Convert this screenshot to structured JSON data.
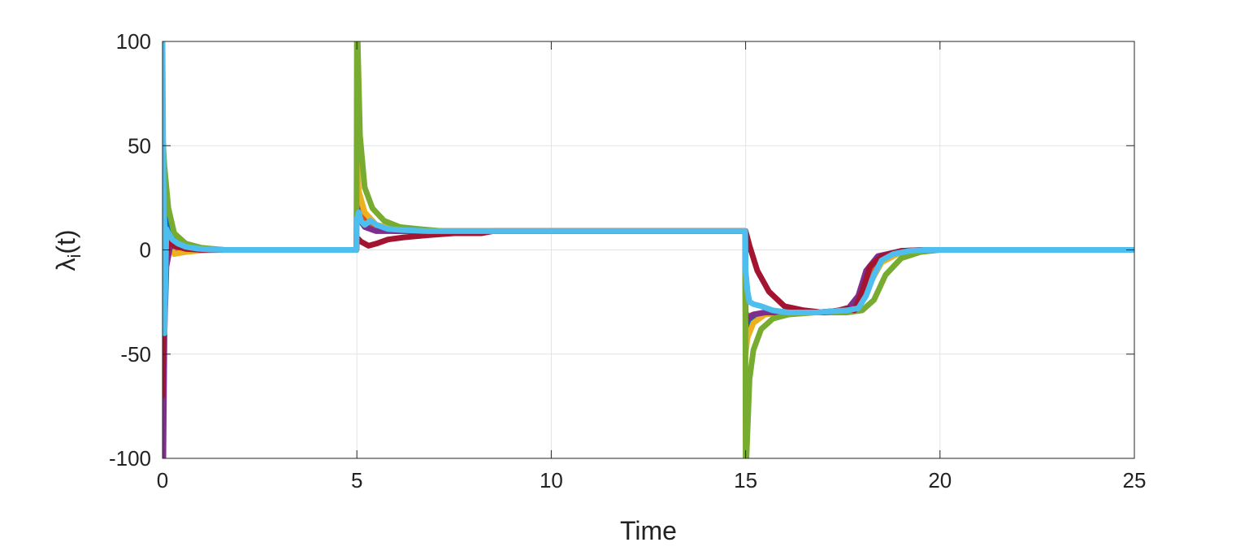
{
  "chart_data": {
    "type": "line",
    "xlabel": "Time",
    "ylabel": "λi(t)",
    "ylabel_base": "λ",
    "ylabel_sub": "i",
    "ylabel_rest": "(t)",
    "xlim": [
      0,
      25
    ],
    "ylim": [
      -100,
      100
    ],
    "xticks": [
      0,
      5,
      10,
      15,
      20,
      25
    ],
    "yticks": [
      -100,
      -50,
      0,
      50,
      100
    ],
    "xtick_labels": [
      "0",
      "5",
      "10",
      "15",
      "20",
      "25"
    ],
    "ytick_labels": [
      "-100",
      "-50",
      "0",
      "50",
      "100"
    ],
    "grid": true,
    "box": true,
    "series": [
      {
        "color": "#0072BD",
        "x": [
          0,
          0.05,
          0.15,
          0.3,
          0.6,
          1.0,
          1.6,
          4.99,
          5.0,
          5.05,
          5.2,
          5.5,
          6.0,
          6.6,
          7.2,
          8.0,
          14.99,
          15.0,
          15.05,
          15.2,
          15.5,
          16.0,
          16.8,
          17.6,
          17.9,
          18.2,
          18.5,
          19.0,
          19.6,
          25
        ],
        "y": [
          60,
          25,
          12,
          5,
          1.5,
          0.4,
          0,
          0,
          30,
          18,
          12,
          10,
          9,
          9,
          9,
          9,
          9,
          -40,
          -36,
          -32,
          -30,
          -30,
          -30,
          -29,
          -26,
          -15,
          -5,
          -1,
          0,
          0
        ]
      },
      {
        "color": "#D95319",
        "x": [
          0,
          0.05,
          0.15,
          0.3,
          0.6,
          1.0,
          1.6,
          4.99,
          5.0,
          5.05,
          5.2,
          5.5,
          6.0,
          6.6,
          7.2,
          8.0,
          14.99,
          15.0,
          15.05,
          15.2,
          15.5,
          16.0,
          16.8,
          17.6,
          17.9,
          18.2,
          18.5,
          19.0,
          19.6,
          25
        ],
        "y": [
          -20,
          -5,
          2,
          1,
          0.3,
          0,
          0,
          0,
          35,
          22,
          15,
          11,
          9,
          9,
          9,
          9,
          9,
          -30,
          -32,
          -31,
          -30,
          -30,
          -30,
          -29,
          -25,
          -12,
          -4,
          -1,
          0,
          0
        ]
      },
      {
        "color": "#EDB120",
        "x": [
          0,
          0.05,
          0.15,
          0.3,
          0.6,
          1.0,
          1.6,
          4.99,
          5.0,
          5.05,
          5.2,
          5.5,
          6.0,
          6.6,
          7.2,
          8.0,
          14.99,
          15.0,
          15.05,
          15.2,
          15.5,
          16.0,
          16.8,
          17.6,
          17.9,
          18.2,
          18.5,
          19.0,
          19.6,
          25
        ],
        "y": [
          40,
          10,
          3,
          -2,
          -1,
          -0.3,
          0,
          0,
          45,
          28,
          18,
          12,
          10,
          9,
          9,
          9,
          9,
          -50,
          -42,
          -35,
          -31,
          -30,
          -30,
          -29,
          -26,
          -16,
          -6,
          -1,
          0,
          0
        ]
      },
      {
        "color": "#7E2F8E",
        "x": [
          0,
          0.02,
          0.05,
          0.1,
          0.2,
          0.4,
          0.8,
          1.4,
          4.99,
          5.0,
          5.05,
          5.2,
          5.5,
          6.0,
          6.6,
          7.2,
          8.0,
          14.99,
          15.0,
          15.05,
          15.2,
          15.5,
          16.0,
          16.8,
          17.6,
          17.9,
          18.1,
          18.4,
          19.0,
          19.6,
          25
        ],
        "y": [
          -100,
          -100,
          -40,
          -8,
          2,
          1.5,
          0.4,
          0,
          0,
          20,
          15,
          11,
          9,
          9,
          9,
          9,
          9,
          9,
          -35,
          -33,
          -31,
          -30,
          -30,
          -30,
          -29,
          -22,
          -10,
          -3,
          -0.5,
          0,
          0
        ]
      },
      {
        "color": "#77AC30",
        "x": [
          0,
          0.05,
          0.15,
          0.3,
          0.6,
          1.0,
          1.6,
          4.99,
          5.0,
          5.02,
          5.08,
          5.2,
          5.4,
          5.7,
          6.1,
          6.6,
          7.2,
          8.0,
          14.99,
          15.0,
          15.02,
          15.1,
          15.2,
          15.4,
          15.7,
          16.1,
          16.8,
          17.6,
          18.0,
          18.3,
          18.6,
          19.0,
          19.5,
          20.0,
          25
        ],
        "y": [
          55,
          40,
          20,
          8,
          3,
          1,
          0,
          0,
          100,
          100,
          55,
          30,
          20,
          14,
          11,
          10,
          9,
          9,
          9,
          -100,
          -100,
          -62,
          -48,
          -38,
          -33,
          -31,
          -30,
          -30,
          -29,
          -24,
          -12,
          -4,
          -1,
          0,
          0
        ]
      },
      {
        "color": "#A2142F",
        "x": [
          0,
          0.05,
          0.15,
          0.3,
          0.6,
          1.0,
          1.6,
          4.99,
          5.0,
          5.1,
          5.3,
          5.5,
          5.8,
          6.2,
          6.8,
          7.5,
          8.2,
          8.5,
          14.99,
          15.0,
          15.1,
          15.3,
          15.6,
          16.0,
          16.5,
          17.0,
          17.4,
          17.6,
          17.8,
          18.0,
          18.2,
          18.5,
          19.0,
          19.5,
          25
        ],
        "y": [
          -70,
          -10,
          5,
          2,
          0.5,
          0,
          0,
          0,
          6,
          4,
          2,
          3,
          5,
          6,
          7,
          8,
          8,
          9,
          9,
          9,
          2,
          -10,
          -20,
          -27,
          -29,
          -30,
          -29,
          -28,
          -29,
          -20,
          -8,
          -3,
          -0.5,
          0,
          0
        ]
      },
      {
        "color": "#4DBEEE",
        "x": [
          0,
          0.02,
          0.05,
          0.1,
          0.15,
          0.25,
          0.4,
          0.6,
          0.9,
          1.2,
          1.6,
          2.0,
          4.99,
          5.0,
          5.05,
          5.1,
          5.2,
          5.35,
          5.5,
          5.8,
          6.2,
          6.8,
          7.5,
          8.5,
          14.99,
          15.0,
          15.05,
          15.1,
          15.2,
          15.4,
          15.7,
          16.1,
          16.8,
          17.6,
          17.9,
          18.1,
          18.3,
          18.5,
          18.8,
          19.2,
          19.6,
          20.0,
          25
        ],
        "y": [
          100,
          40,
          -40,
          10,
          8,
          5,
          3,
          1.5,
          0.6,
          0.2,
          0,
          0,
          0,
          15,
          18,
          14,
          12,
          14,
          12,
          10,
          9.5,
          9,
          9,
          9,
          9,
          -10,
          -20,
          -25,
          -26,
          -27,
          -29,
          -30,
          -30,
          -29,
          -28,
          -22,
          -12,
          -5,
          -2,
          -0.5,
          0,
          0,
          0
        ]
      }
    ]
  }
}
